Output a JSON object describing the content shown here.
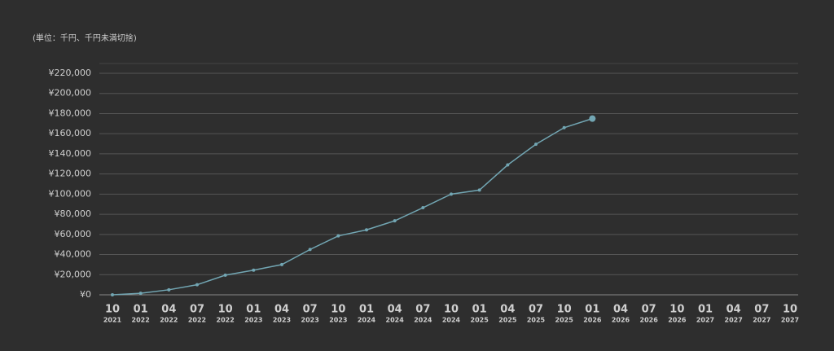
{
  "chart_data": {
    "type": "line",
    "subtitle": "(単位：千円、千円未満切捨)",
    "categories": [
      {
        "month": "10",
        "year": "2021"
      },
      {
        "month": "01",
        "year": "2022"
      },
      {
        "month": "04",
        "year": "2022"
      },
      {
        "month": "07",
        "year": "2022"
      },
      {
        "month": "10",
        "year": "2022"
      },
      {
        "month": "01",
        "year": "2023"
      },
      {
        "month": "04",
        "year": "2023"
      },
      {
        "month": "07",
        "year": "2023"
      },
      {
        "month": "10",
        "year": "2023"
      },
      {
        "month": "01",
        "year": "2024"
      },
      {
        "month": "04",
        "year": "2024"
      },
      {
        "month": "07",
        "year": "2024"
      },
      {
        "month": "10",
        "year": "2024"
      },
      {
        "month": "01",
        "year": "2025"
      },
      {
        "month": "04",
        "year": "2025"
      },
      {
        "month": "07",
        "year": "2025"
      },
      {
        "month": "10",
        "year": "2025"
      },
      {
        "month": "01",
        "year": "2026"
      },
      {
        "month": "04",
        "year": "2026"
      },
      {
        "month": "07",
        "year": "2026"
      },
      {
        "month": "10",
        "year": "2026"
      },
      {
        "month": "01",
        "year": "2027"
      },
      {
        "month": "04",
        "year": "2027"
      },
      {
        "month": "07",
        "year": "2027"
      },
      {
        "month": "10",
        "year": "2027"
      }
    ],
    "values": [
      0,
      1500,
      5000,
      10000,
      19500,
      24500,
      30000,
      45000,
      58500,
      64500,
      73500,
      86500,
      100000,
      104000,
      129000,
      149500,
      166000,
      175000,
      null,
      null,
      null,
      null,
      null,
      null,
      null
    ],
    "color": "#72a6b3",
    "ylim": [
      0,
      220000
    ],
    "yticks": [
      {
        "value": 0,
        "label": "¥0"
      },
      {
        "value": 20000,
        "label": "¥20,000"
      },
      {
        "value": 40000,
        "label": "¥40,000"
      },
      {
        "value": 60000,
        "label": "¥60,000"
      },
      {
        "value": 80000,
        "label": "¥80,000"
      },
      {
        "value": 100000,
        "label": "¥100,000"
      },
      {
        "value": 120000,
        "label": "¥120,000"
      },
      {
        "value": 140000,
        "label": "¥140,000"
      },
      {
        "value": 160000,
        "label": "¥160,000"
      },
      {
        "value": 180000,
        "label": "¥180,000"
      },
      {
        "value": 200000,
        "label": "¥200,000"
      },
      {
        "value": 220000,
        "label": "¥220,000"
      }
    ],
    "grid": true
  }
}
